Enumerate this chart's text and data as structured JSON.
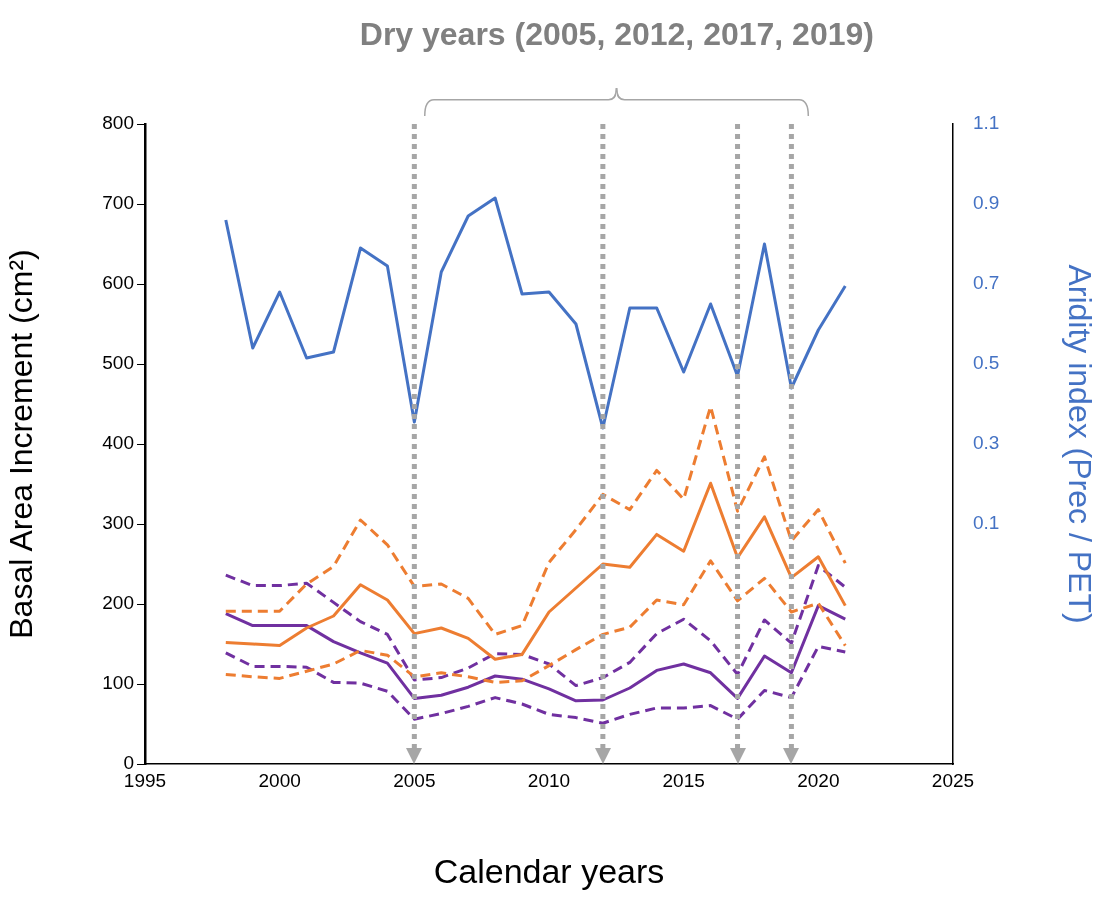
{
  "chart_data": {
    "type": "line",
    "title": "Dry years (2005, 2012, 2017, 2019)",
    "xlabel": "Calendar years",
    "ylabel": "Basal Area Increment (cm²)",
    "y2label": "Aridity index (Prec / PET)",
    "x": [
      1998,
      1999,
      2000,
      2001,
      2002,
      2003,
      2004,
      2005,
      2006,
      2007,
      2008,
      2009,
      2010,
      2011,
      2012,
      2013,
      2014,
      2015,
      2016,
      2017,
      2018,
      2019,
      2020,
      2021
    ],
    "xlim": [
      1995,
      2025
    ],
    "xticks": [
      1995,
      2000,
      2005,
      2010,
      2015,
      2020,
      2025
    ],
    "ylim": [
      0,
      800
    ],
    "yticks": [
      0,
      100,
      200,
      300,
      400,
      500,
      600,
      700,
      800
    ],
    "y2lim": [
      -0.5,
      1.1
    ],
    "y2ticks": [
      0.1,
      0.3,
      0.5,
      0.7,
      0.9,
      1.1
    ],
    "grid": false,
    "legend": false,
    "marker": "none",
    "series": [
      {
        "color": "#4472c4",
        "axis": "y2",
        "line_style": "solid",
        "values": [
          0.86,
          0.54,
          0.68,
          0.515,
          0.53,
          0.79,
          0.745,
          0.355,
          0.73,
          0.87,
          0.915,
          0.675,
          0.68,
          0.6,
          0.34,
          0.64,
          0.64,
          0.48,
          0.65,
          0.47,
          0.8,
          0.44,
          0.585,
          0.695
        ]
      },
      {
        "color": "#ed7d31",
        "line_style": "dashed",
        "values": [
          191,
          191,
          191,
          225,
          247,
          305,
          274,
          222,
          225,
          207,
          162,
          173,
          252,
          293,
          337,
          318,
          367,
          331,
          447,
          316,
          384,
          279,
          318,
          251
        ]
      },
      {
        "color": "#ed7d31",
        "line_style": "solid",
        "values": [
          152,
          150,
          148,
          170,
          185,
          224,
          205,
          163,
          170,
          157,
          131,
          137,
          190,
          220,
          250,
          246,
          287,
          266,
          351,
          258,
          309,
          233,
          259,
          198
        ]
      },
      {
        "color": "#ed7d31",
        "line_style": "dashed",
        "values": [
          112,
          109,
          107,
          116,
          125,
          142,
          136,
          109,
          114,
          109,
          102,
          104,
          123,
          143,
          162,
          171,
          205,
          199,
          254,
          204,
          232,
          190,
          201,
          148
        ]
      },
      {
        "color": "#7030a0",
        "line_style": "dashed",
        "values": [
          236,
          223,
          223,
          226,
          202,
          178,
          162,
          105,
          108,
          120,
          138,
          137,
          125,
          98,
          108,
          127,
          163,
          181,
          154,
          112,
          180,
          151,
          248,
          221
        ]
      },
      {
        "color": "#7030a0",
        "line_style": "solid",
        "values": [
          188,
          173,
          173,
          173,
          153,
          139,
          126,
          82,
          86,
          96,
          110,
          106,
          94,
          79,
          80,
          95,
          117,
          125,
          114,
          82,
          135,
          114,
          198,
          181
        ]
      },
      {
        "color": "#7030a0",
        "line_style": "dashed",
        "values": [
          139,
          122,
          122,
          121,
          102,
          101,
          91,
          56,
          63,
          72,
          83,
          75,
          62,
          58,
          51,
          62,
          70,
          70,
          73,
          56,
          92,
          83,
          147,
          140
        ]
      }
    ],
    "ref_lines": [
      {
        "axis": "x",
        "value": 2005,
        "color": "#a6a6a6",
        "line_style": "dotted"
      },
      {
        "axis": "x",
        "value": 2012,
        "color": "#a6a6a6",
        "line_style": "dotted"
      },
      {
        "axis": "x",
        "value": 2017,
        "color": "#a6a6a6",
        "line_style": "dotted"
      },
      {
        "axis": "x",
        "value": 2019,
        "color": "#a6a6a6",
        "line_style": "dotted"
      }
    ]
  }
}
